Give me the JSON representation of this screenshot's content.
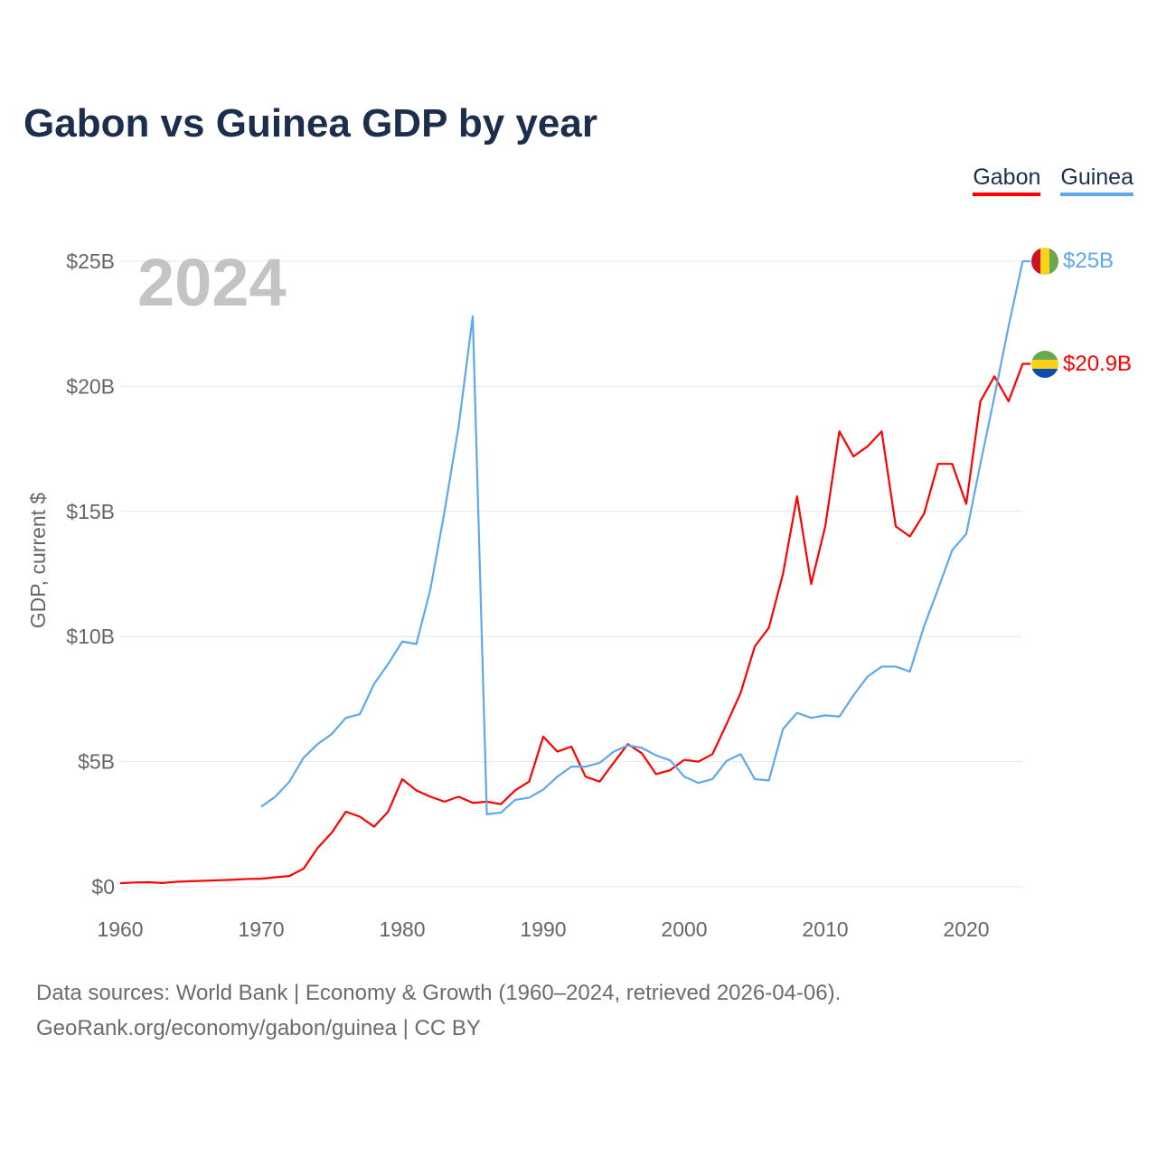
{
  "title": "Gabon vs Guinea GDP by year",
  "footer": {
    "line1": "Data sources: World Bank | Economy & Growth (1960–2024, retrieved 2026-04-06).",
    "line2": "GeoRank.org/economy/gabon/guinea | CC BY"
  },
  "chart_data": {
    "type": "line",
    "title": "Gabon vs Guinea GDP by year",
    "xlabel": "",
    "ylabel": "GDP, current $",
    "year_watermark": "2024",
    "xlim": [
      1960,
      2024
    ],
    "ylim": [
      0,
      25
    ],
    "x_ticks": [
      "1960",
      "1970",
      "1980",
      "1990",
      "2000",
      "2010",
      "2020"
    ],
    "y_ticks": [
      {
        "v": 0,
        "label": "$0"
      },
      {
        "v": 5,
        "label": "$5B"
      },
      {
        "v": 10,
        "label": "$10B"
      },
      {
        "v": 15,
        "label": "$15B"
      },
      {
        "v": 20,
        "label": "$20B"
      },
      {
        "v": 25,
        "label": "$25B"
      }
    ],
    "legend": "top-right",
    "grid": true,
    "series": [
      {
        "name": "Gabon",
        "color": "#ff0000",
        "end_label": "$20.9B",
        "start_year": 1960,
        "values": [
          0.14,
          0.17,
          0.18,
          0.15,
          0.2,
          0.22,
          0.24,
          0.26,
          0.28,
          0.31,
          0.32,
          0.38,
          0.43,
          0.72,
          1.55,
          2.16,
          3.0,
          2.8,
          2.4,
          3.0,
          4.3,
          3.85,
          3.6,
          3.4,
          3.6,
          3.35,
          3.4,
          3.3,
          3.85,
          4.2,
          6.0,
          5.4,
          5.6,
          4.4,
          4.2,
          4.96,
          5.7,
          5.33,
          4.5,
          4.66,
          5.07,
          5.0,
          5.3,
          6.5,
          7.75,
          9.6,
          10.35,
          12.5,
          15.6,
          12.1,
          14.4,
          18.2,
          17.2,
          17.6,
          18.2,
          14.4,
          14.0,
          14.9,
          16.9,
          16.9,
          15.3,
          19.4,
          20.4,
          19.4,
          20.9
        ]
      },
      {
        "name": "Guinea",
        "color": "#5ea8ec",
        "end_label": "$25B",
        "start_year": 1970,
        "values": [
          3.2,
          3.6,
          4.2,
          5.15,
          5.7,
          6.1,
          6.75,
          6.9,
          8.1,
          8.9,
          9.8,
          9.7,
          11.9,
          15.0,
          18.4,
          22.8,
          2.9,
          2.96,
          3.47,
          3.56,
          3.88,
          4.4,
          4.8,
          4.8,
          4.95,
          5.4,
          5.65,
          5.55,
          5.25,
          5.05,
          4.4,
          4.15,
          4.3,
          5.03,
          5.3,
          4.3,
          4.25,
          6.3,
          6.95,
          6.75,
          6.85,
          6.8,
          7.65,
          8.4,
          8.8,
          8.8,
          8.6,
          10.4,
          11.9,
          13.45,
          14.1,
          16.9,
          19.6,
          22.4,
          25.0
        ]
      }
    ]
  }
}
